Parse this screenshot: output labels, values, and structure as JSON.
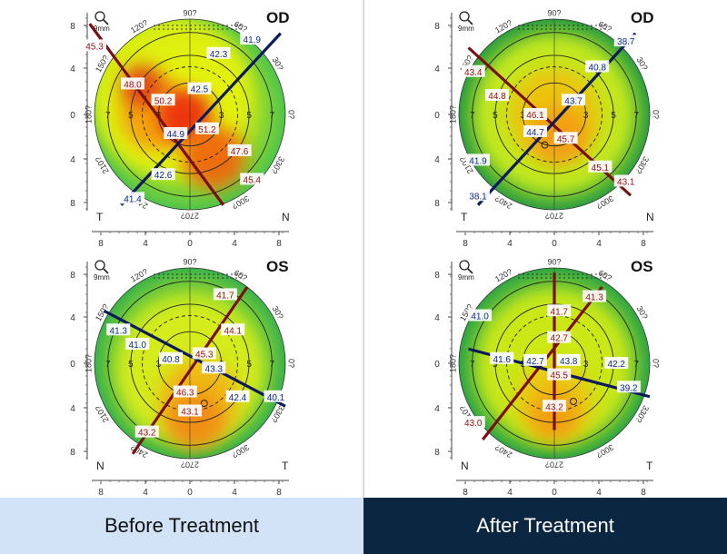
{
  "footer": {
    "before": "Before Treatment",
    "after": "After Treatment"
  },
  "maps": [
    {
      "id": "before-od",
      "eye": "OD",
      "side_left": "T",
      "side_right": "N",
      "values": [
        {
          "t": "45.3",
          "c": "red"
        },
        {
          "t": "48.0",
          "c": "red"
        },
        {
          "t": "50.2",
          "c": "red"
        },
        {
          "t": "42.5",
          "c": "blue"
        },
        {
          "t": "42.3",
          "c": "blue"
        },
        {
          "t": "41.9",
          "c": "blue"
        },
        {
          "t": "44.9",
          "c": "blue"
        },
        {
          "t": "51.2",
          "c": "red"
        },
        {
          "t": "47.6",
          "c": "red"
        },
        {
          "t": "45.4",
          "c": "red"
        },
        {
          "t": "42.6",
          "c": "blue"
        },
        {
          "t": "41.4",
          "c": "blue"
        }
      ]
    },
    {
      "id": "after-od",
      "eye": "OD",
      "side_left": "T",
      "side_right": "N",
      "values": [
        {
          "t": "43.4",
          "c": "red"
        },
        {
          "t": "44.8",
          "c": "red"
        },
        {
          "t": "46.1",
          "c": "red"
        },
        {
          "t": "43.7",
          "c": "blue"
        },
        {
          "t": "40.8",
          "c": "blue"
        },
        {
          "t": "38.7",
          "c": "blue"
        },
        {
          "t": "44.7",
          "c": "blue"
        },
        {
          "t": "45.7",
          "c": "red"
        },
        {
          "t": "45.1",
          "c": "red"
        },
        {
          "t": "43.1",
          "c": "red"
        },
        {
          "t": "41.9",
          "c": "blue"
        },
        {
          "t": "38.1",
          "c": "blue"
        }
      ]
    },
    {
      "id": "before-os",
      "eye": "OS",
      "side_left": "N",
      "side_right": "T",
      "values": [
        {
          "t": "41.7",
          "c": "red"
        },
        {
          "t": "41.3",
          "c": "blue"
        },
        {
          "t": "44.1",
          "c": "red"
        },
        {
          "t": "41.0",
          "c": "blue"
        },
        {
          "t": "45.3",
          "c": "red"
        },
        {
          "t": "40.8",
          "c": "blue"
        },
        {
          "t": "43.3",
          "c": "blue"
        },
        {
          "t": "46.3",
          "c": "red"
        },
        {
          "t": "42.4",
          "c": "blue"
        },
        {
          "t": "40.1",
          "c": "blue"
        },
        {
          "t": "43.1",
          "c": "red"
        },
        {
          "t": "43.2",
          "c": "red"
        }
      ]
    },
    {
      "id": "after-os",
      "eye": "OS",
      "side_left": "N",
      "side_right": "T",
      "values": [
        {
          "t": "41.3",
          "c": "red"
        },
        {
          "t": "41.0",
          "c": "blue"
        },
        {
          "t": "41.7",
          "c": "red"
        },
        {
          "t": "42.7",
          "c": "red"
        },
        {
          "t": "41.6",
          "c": "blue"
        },
        {
          "t": "42.7",
          "c": "blue"
        },
        {
          "t": "43.8",
          "c": "blue"
        },
        {
          "t": "42.2",
          "c": "blue"
        },
        {
          "t": "45.5",
          "c": "red"
        },
        {
          "t": "39.2",
          "c": "blue"
        },
        {
          "t": "43.2",
          "c": "red"
        },
        {
          "t": "43.0",
          "c": "red"
        }
      ]
    }
  ],
  "axis": {
    "ticks": [
      "8",
      "4",
      "0",
      "4",
      "8"
    ],
    "ring_labels": [
      "7",
      "5",
      "3",
      "3",
      "5",
      "7"
    ],
    "degree_labels": [
      "90?",
      "60?",
      "30?",
      "0?",
      "330?",
      "300?",
      "270?",
      "240?",
      "210?",
      "180?",
      "150?",
      "120?"
    ],
    "scale_label": "9mm"
  }
}
